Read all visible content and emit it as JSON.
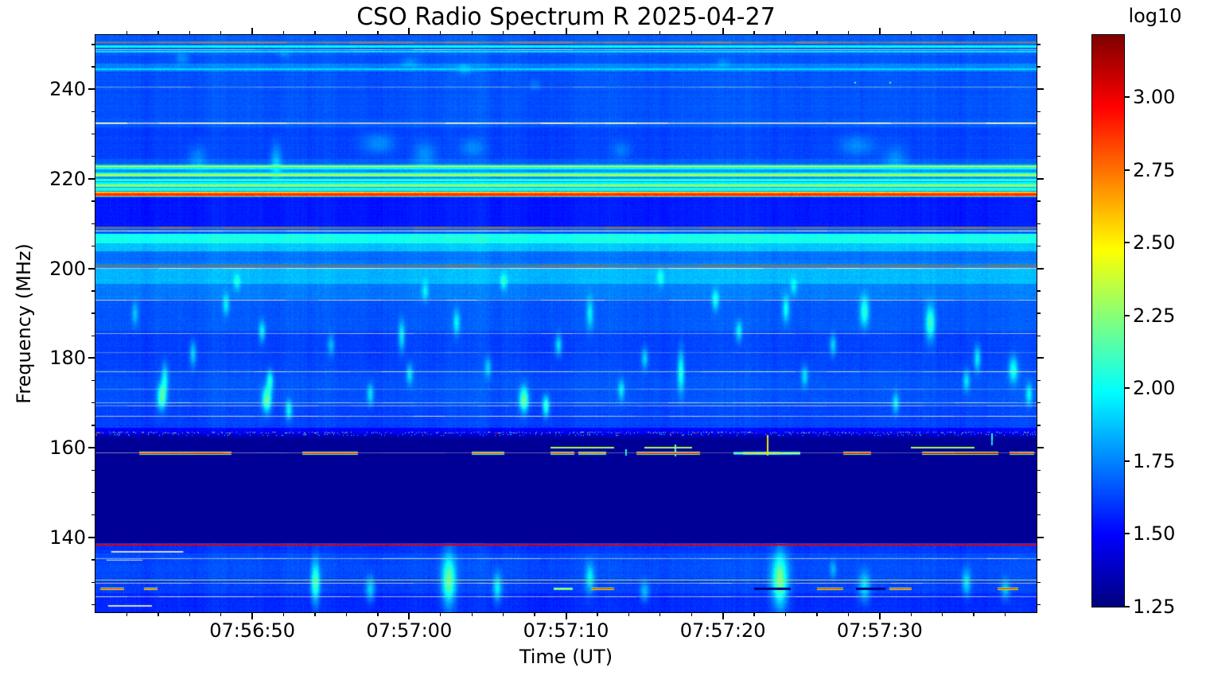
{
  "chart_data": {
    "type": "heatmap",
    "title": "CSO Radio Spectrum R 2025-04-27",
    "xlabel": "Time (UT)",
    "ylabel": "Frequency (MHz)",
    "x_start_time": "07:56:40",
    "x_end_time": "07:57:40",
    "x_range_seconds": [
      0,
      60
    ],
    "x_major_ticks": [
      {
        "label": "07:56:50",
        "s": 10
      },
      {
        "label": "07:57:00",
        "s": 20
      },
      {
        "label": "07:57:10",
        "s": 30
      },
      {
        "label": "07:57:20",
        "s": 40
      },
      {
        "label": "07:57:30",
        "s": 50
      }
    ],
    "x_minor_step_s": 2,
    "y_range_mhz": [
      123.3,
      252.1
    ],
    "y_major_ticks": [
      {
        "label": "240",
        "f": 240
      },
      {
        "label": "220",
        "f": 220
      },
      {
        "label": "200",
        "f": 200
      },
      {
        "label": "180",
        "f": 180
      },
      {
        "label": "160",
        "f": 160
      },
      {
        "label": "140",
        "f": 140
      }
    ],
    "y_minor_step_mhz": 5,
    "colorbar": {
      "label": "log10",
      "colormap": "jet",
      "vmin": 1.25,
      "vmax": 3.213,
      "ticks": [
        {
          "label": "3.00",
          "v": 3.0
        },
        {
          "label": "2.75",
          "v": 2.75
        },
        {
          "label": "2.50",
          "v": 2.5
        },
        {
          "label": "2.25",
          "v": 2.25
        },
        {
          "label": "2.00",
          "v": 2.0
        },
        {
          "label": "1.75",
          "v": 1.75
        },
        {
          "label": "1.50",
          "v": 1.5
        },
        {
          "label": "1.25",
          "v": 1.25
        }
      ]
    },
    "background_bands": [
      [
        252.1,
        247.5,
        1.68,
        0.035
      ],
      [
        247.5,
        245.7,
        1.66,
        0.035
      ],
      [
        245.7,
        243.9,
        1.76,
        0.04
      ],
      [
        243.9,
        233.5,
        1.66,
        0.035
      ],
      [
        233.5,
        231.5,
        1.68,
        0.035
      ],
      [
        231.5,
        224.5,
        1.63,
        0.035
      ],
      [
        224.5,
        223.3,
        1.68,
        0.04
      ],
      [
        223.3,
        217.2,
        1.8,
        0.05
      ],
      [
        217.2,
        215.9,
        1.85,
        0.05
      ],
      [
        215.9,
        209.4,
        1.55,
        0.03
      ],
      [
        209.4,
        207.7,
        1.68,
        0.04
      ],
      [
        207.7,
        205.6,
        2.03,
        0.05
      ],
      [
        205.6,
        203.8,
        1.88,
        0.05
      ],
      [
        203.8,
        201.2,
        1.72,
        0.04
      ],
      [
        201.2,
        200.0,
        1.76,
        0.04
      ],
      [
        200.0,
        196.5,
        1.86,
        0.05
      ],
      [
        196.5,
        193.2,
        1.74,
        0.045
      ],
      [
        193.2,
        186.0,
        1.67,
        0.04
      ],
      [
        186.0,
        177.5,
        1.63,
        0.04
      ],
      [
        177.5,
        169.5,
        1.66,
        0.04
      ],
      [
        169.5,
        164.5,
        1.63,
        0.04
      ],
      [
        164.5,
        163.0,
        1.5,
        0.04
      ],
      [
        163.0,
        162.2,
        1.36,
        0.03
      ],
      [
        162.2,
        138.8,
        1.295,
        0.007
      ],
      [
        138.8,
        136.5,
        1.6,
        0.04
      ],
      [
        136.5,
        131.0,
        1.65,
        0.045
      ],
      [
        131.0,
        127.5,
        1.62,
        0.045
      ],
      [
        127.5,
        123.3,
        1.58,
        0.04
      ]
    ],
    "value_lines": [
      [
        249.6,
        1.98,
        3
      ],
      [
        248.3,
        1.95,
        2
      ],
      [
        244.5,
        1.92,
        2
      ],
      [
        222.9,
        2.35,
        2
      ],
      [
        222.3,
        2.0,
        3
      ],
      [
        221.2,
        2.05,
        3
      ],
      [
        220.7,
        2.3,
        3
      ],
      [
        219.8,
        2.05,
        3
      ],
      [
        219.1,
        2.0,
        3
      ],
      [
        218.4,
        2.28,
        3
      ],
      [
        217.7,
        2.02,
        4
      ],
      [
        216.9,
        2.6,
        2
      ],
      [
        216.6,
        2.88,
        3
      ],
      [
        216.3,
        2.72,
        2
      ],
      [
        138.3,
        3.02,
        2
      ],
      [
        130.4,
        2.32,
        1
      ]
    ],
    "overlay_lines": [
      [
        250.4,
        3,
        0.75,
        "#86837e"
      ],
      [
        248.9,
        1,
        0.8,
        "#d8e8c0"
      ],
      [
        240.4,
        1,
        0.5,
        "#e6e8c8"
      ],
      [
        232.4,
        2,
        0.85,
        "#e9ebcf"
      ],
      [
        209.0,
        3,
        0.8,
        "#7a736a"
      ],
      [
        208.4,
        1,
        0.9,
        "#eceedd"
      ],
      [
        200.6,
        3,
        0.8,
        "#7a736a"
      ],
      [
        200.1,
        1,
        0.9,
        "#eceedd"
      ],
      [
        193.0,
        1,
        0.8,
        "#e9ebcf"
      ],
      [
        185.4,
        1,
        0.6,
        "#e4e6c6"
      ],
      [
        181.3,
        1,
        0.35,
        "#dde0c0"
      ],
      [
        177.0,
        1,
        0.75,
        "#e9ebcf"
      ],
      [
        173.0,
        1,
        0.4,
        "#dde0c0"
      ],
      [
        170.0,
        1,
        0.7,
        "#e9ebcf"
      ],
      [
        169.4,
        1,
        0.6,
        "#e6e8c8"
      ],
      [
        167.1,
        1,
        0.75,
        "#e9ebcf"
      ],
      [
        158.8,
        1,
        0.45,
        "#e0e2ca"
      ],
      [
        135.2,
        1,
        0.7,
        "#e6e8c8"
      ],
      [
        129.8,
        1,
        0.7,
        "#e6e8c8"
      ],
      [
        126.8,
        1,
        0.75,
        "#e9ebcf"
      ]
    ],
    "dash_rows": [
      {
        "f": 158.8,
        "th": 4,
        "segments": [
          [
            2.8,
            8.6,
            2.95
          ],
          [
            13.2,
            16.7,
            2.9
          ],
          [
            24,
            26,
            2.8
          ],
          [
            29,
            30.5,
            2.85
          ],
          [
            30.8,
            32.5,
            2.75
          ],
          [
            34.5,
            38.5,
            2.95
          ],
          [
            40.7,
            41.3,
            2.2
          ],
          [
            41.3,
            43.6,
            2.55
          ],
          [
            43.6,
            44.9,
            2.35
          ],
          [
            47.7,
            49.4,
            3.0
          ],
          [
            52.7,
            57.5,
            3.1
          ],
          [
            58.3,
            59.8,
            2.95
          ]
        ]
      },
      {
        "f": 160.0,
        "th": 2,
        "segments": [
          [
            29,
            33,
            3.18
          ],
          [
            35,
            38,
            3.16
          ],
          [
            52,
            56,
            3.16
          ]
        ]
      },
      {
        "f": 128.6,
        "th": 3,
        "segments": [
          [
            0.3,
            1.8,
            3.0
          ],
          [
            3.1,
            3.9,
            2.9
          ],
          [
            29.2,
            30.4,
            2.5
          ],
          [
            31.6,
            33,
            3.1
          ],
          [
            42,
            44.3,
            1.27
          ],
          [
            46,
            47.6,
            3.12
          ],
          [
            48.5,
            50.3,
            1.27
          ],
          [
            50.6,
            52,
            2.95
          ],
          [
            57.5,
            58.8,
            3.1
          ]
        ]
      },
      {
        "f": 136.8,
        "th": 2,
        "segments": [
          [
            1,
            5.6,
            "#eef0dc"
          ]
        ]
      },
      {
        "f": 135.0,
        "th": 1,
        "segments": [
          [
            0.7,
            3.0,
            "#eef0dc"
          ]
        ]
      },
      {
        "f": 124.7,
        "th": 2,
        "segments": [
          [
            0.8,
            3.6,
            "#eef0dc"
          ]
        ]
      }
    ],
    "speckle_rows": [
      {
        "f": 163.6,
        "density": 0.28,
        "vlo": 1.9,
        "vhi": 2.85
      },
      {
        "f": 163.1,
        "density": 0.12,
        "vlo": 1.8,
        "vhi": 2.4
      }
    ],
    "v_streaks": [
      [
        42.8,
        158.5,
        162.8,
        2.5,
        2
      ],
      [
        36.9,
        158.3,
        160.8,
        2.2,
        2
      ],
      [
        57.1,
        160.8,
        163.2,
        2.0,
        2
      ],
      [
        33.8,
        158.4,
        159.6,
        2.0,
        2
      ]
    ],
    "specks": [
      [
        48.4,
        241.6,
        2.15
      ],
      [
        50.6,
        241.6,
        2.2
      ]
    ],
    "plumes": [
      [
        18,
        228,
        14,
        10,
        0.16
      ],
      [
        21,
        225.5,
        10,
        12,
        0.14
      ],
      [
        24,
        227,
        10,
        8,
        0.12
      ],
      [
        6.5,
        224.5,
        8,
        12,
        0.14
      ],
      [
        11.5,
        223.8,
        5,
        16,
        0.22
      ],
      [
        33.5,
        226.5,
        8,
        8,
        0.1
      ],
      [
        48.5,
        227.5,
        15,
        9,
        0.14
      ],
      [
        51,
        224.5,
        10,
        12,
        0.12
      ],
      [
        5.5,
        247,
        6,
        5,
        0.12
      ],
      [
        12,
        248,
        5,
        4,
        0.1
      ],
      [
        20,
        246,
        8,
        5,
        0.1
      ],
      [
        23.5,
        244.5,
        6,
        5,
        0.12
      ],
      [
        40,
        246,
        6,
        4,
        0.08
      ],
      [
        28,
        241,
        5,
        5,
        0.08
      ],
      [
        2.5,
        190,
        3,
        10,
        0.22
      ],
      [
        4.2,
        171.5,
        4,
        11,
        0.5
      ],
      [
        4.4,
        175.5,
        3,
        13,
        0.32
      ],
      [
        6.2,
        181,
        3,
        11,
        0.28
      ],
      [
        8.3,
        192,
        3,
        9,
        0.28
      ],
      [
        10.6,
        186,
        3,
        9,
        0.3
      ],
      [
        10.9,
        170.8,
        4,
        11,
        0.55
      ],
      [
        11.1,
        175,
        3,
        9,
        0.38
      ],
      [
        12.3,
        168.5,
        3,
        8,
        0.35
      ],
      [
        15,
        183,
        3,
        9,
        0.22
      ],
      [
        17.5,
        172,
        3,
        9,
        0.3
      ],
      [
        19.5,
        185,
        3,
        13,
        0.32
      ],
      [
        20,
        176.5,
        3,
        9,
        0.28
      ],
      [
        23,
        188,
        3,
        11,
        0.3
      ],
      [
        25,
        178,
        3,
        9,
        0.24
      ],
      [
        27.3,
        170.8,
        4,
        11,
        0.55
      ],
      [
        28.7,
        169.3,
        3,
        9,
        0.45
      ],
      [
        29.5,
        183,
        3,
        9,
        0.32
      ],
      [
        31.5,
        190,
        3,
        13,
        0.3
      ],
      [
        33.5,
        173,
        3,
        9,
        0.28
      ],
      [
        35,
        180,
        3,
        9,
        0.28
      ],
      [
        37.3,
        177,
        3,
        18,
        0.38
      ],
      [
        39.5,
        193,
        3,
        9,
        0.32
      ],
      [
        41,
        186,
        3,
        9,
        0.3
      ],
      [
        44,
        191,
        3,
        11,
        0.35
      ],
      [
        45.2,
        176,
        3,
        9,
        0.28
      ],
      [
        47,
        183,
        3,
        9,
        0.28
      ],
      [
        49,
        190.5,
        4,
        13,
        0.42
      ],
      [
        51,
        170,
        3,
        9,
        0.28
      ],
      [
        53.2,
        188,
        4,
        15,
        0.45
      ],
      [
        55.5,
        175,
        3,
        9,
        0.28
      ],
      [
        56.2,
        180,
        3,
        11,
        0.32
      ],
      [
        58.5,
        177.5,
        4,
        11,
        0.38
      ],
      [
        59.5,
        172,
        3,
        9,
        0.32
      ],
      [
        21,
        195,
        3,
        8,
        0.25
      ],
      [
        26,
        197,
        3,
        7,
        0.25
      ],
      [
        36,
        198,
        3,
        7,
        0.22
      ],
      [
        44.5,
        196,
        3,
        7,
        0.22
      ],
      [
        9,
        197,
        3,
        7,
        0.22
      ],
      [
        14,
        130,
        4,
        18,
        0.5
      ],
      [
        17.5,
        128.5,
        4,
        11,
        0.3
      ],
      [
        22.5,
        130.5,
        6,
        22,
        0.55
      ],
      [
        25.6,
        128.8,
        4,
        13,
        0.35
      ],
      [
        31.5,
        131,
        4,
        13,
        0.32
      ],
      [
        35,
        128,
        4,
        9,
        0.25
      ],
      [
        43.6,
        130.5,
        7,
        24,
        0.6
      ],
      [
        49,
        129,
        5,
        13,
        0.32
      ],
      [
        55.5,
        130,
        4,
        11,
        0.3
      ],
      [
        58,
        128.5,
        4,
        9,
        0.25
      ],
      [
        47,
        133,
        3,
        8,
        0.2
      ]
    ],
    "noise": {
      "base": 0.035,
      "dark": 0.007,
      "column": 0.02,
      "row": 0.045
    }
  }
}
